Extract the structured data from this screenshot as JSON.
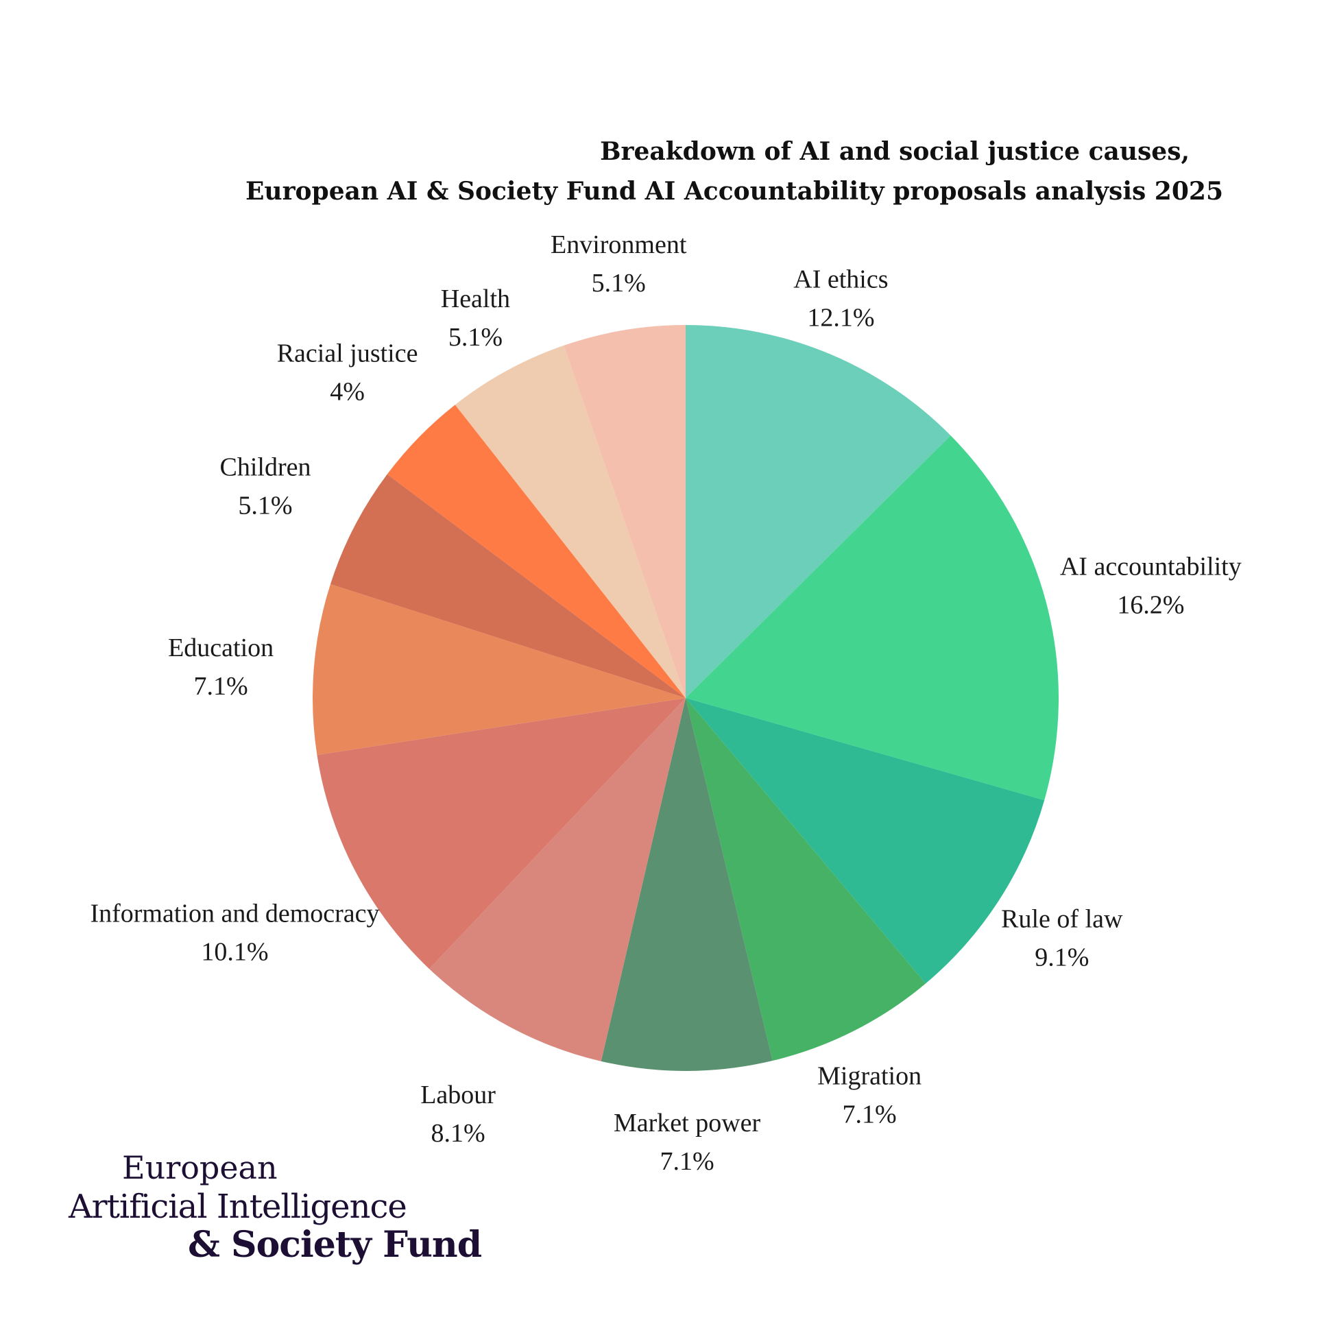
{
  "title": {
    "line1": "Breakdown of AI and social justice causes,",
    "line2": "European AI & Society Fund AI Accountability proposals analysis 2025"
  },
  "chart_data": {
    "type": "pie",
    "start": "12 o'clock, clockwise",
    "slices": [
      {
        "label": "AI ethics",
        "value": 12.1,
        "value_label": "12.1%",
        "color": "#6ccfb9"
      },
      {
        "label": "AI accountability",
        "value": 16.2,
        "value_label": "16.2%",
        "color": "#43d590"
      },
      {
        "label": "Rule of law",
        "value": 9.1,
        "value_label": "9.1%",
        "color": "#2fba93"
      },
      {
        "label": "Migration",
        "value": 7.1,
        "value_label": "7.1%",
        "color": "#46b266"
      },
      {
        "label": "Market power",
        "value": 7.1,
        "value_label": "7.1%",
        "color": "#5a9170"
      },
      {
        "label": "Labour",
        "value": 8.1,
        "value_label": "8.1%",
        "color": "#d9877c"
      },
      {
        "label": "Information and democracy",
        "value": 10.1,
        "value_label": "10.1%",
        "color": "#da796b"
      },
      {
        "label": "Education",
        "value": 7.1,
        "value_label": "7.1%",
        "color": "#e8885b"
      },
      {
        "label": "Children",
        "value": 5.1,
        "value_label": "5.1%",
        "color": "#d36f52"
      },
      {
        "label": "Racial justice",
        "value": 4.0,
        "value_label": "4%",
        "color": "#ff7b45"
      },
      {
        "label": "Health",
        "value": 5.1,
        "value_label": "5.1%",
        "color": "#fbac3e"
      },
      {
        "label": "Environment",
        "value": 5.1,
        "value_label": "5.1%",
        "color": "#efccb0"
      }
    ],
    "extra_slice_colors_note": "Environment sits last before AI ethics",
    "legend": "none (labels around pie)"
  },
  "logo": {
    "line1": "European",
    "line2": "Artificial Intelligence",
    "line3": "& Society Fund"
  }
}
